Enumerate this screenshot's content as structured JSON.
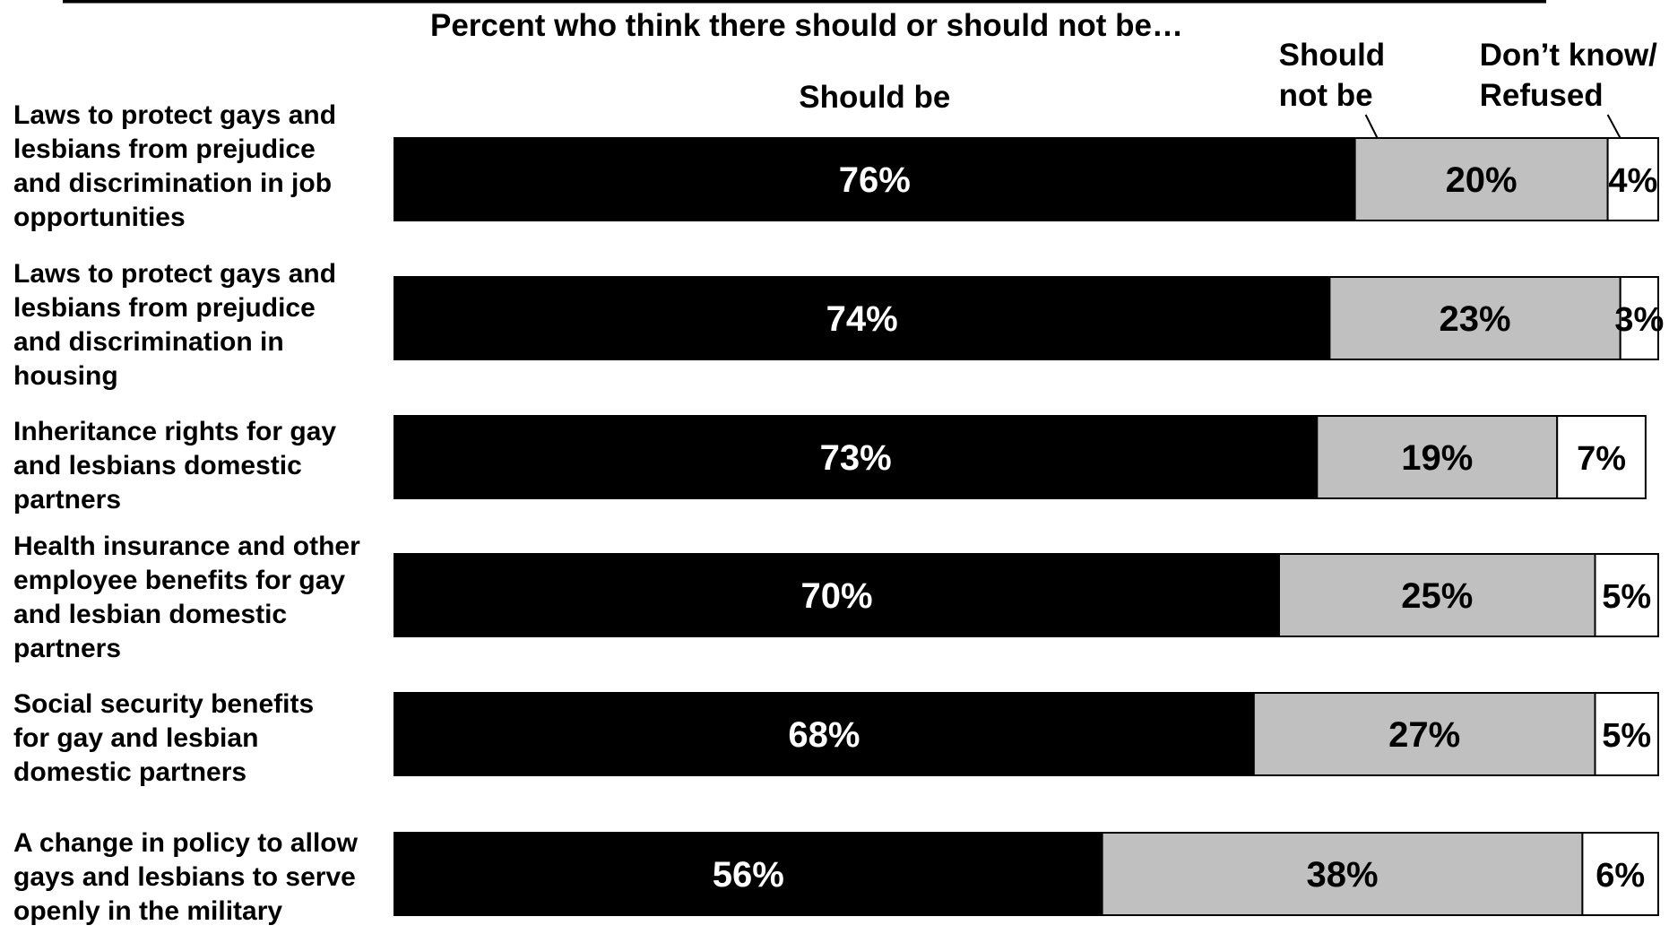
{
  "chart_data": {
    "type": "bar",
    "orientation": "horizontal",
    "stacked": true,
    "title": "Percent who think there should or should not be…",
    "categories": [
      "Laws to protect gays and lesbians from prejudice and discrimination in job opportunities",
      "Laws to protect gays and lesbians from prejudice and discrimination in housing",
      "Inheritance rights for gay and lesbians domestic partners",
      "Health insurance and other employee benefits for gay and lesbian domestic partners",
      "Social security benefits for gay and lesbian domestic partners",
      "A change in policy to allow gays and lesbians to serve openly in the military"
    ],
    "category_lines": [
      [
        "Laws to protect gays and",
        "lesbians from prejudice",
        "and discrimination in job",
        "opportunities"
      ],
      [
        "Laws to protect gays and",
        "lesbians from prejudice",
        "and discrimination in",
        "housing"
      ],
      [
        "Inheritance rights for gay",
        "and lesbians domestic",
        "partners"
      ],
      [
        "Health insurance and other",
        "employee benefits for gay",
        "and lesbian domestic",
        "partners"
      ],
      [
        "Social security benefits",
        "for gay and lesbian",
        "domestic partners"
      ],
      [
        "A change in policy to allow",
        "gays and lesbians to serve",
        "openly in the military"
      ]
    ],
    "series": [
      {
        "name": "Should be",
        "name_lines": [
          "Should be"
        ],
        "color": "#000000",
        "label_color": "#ffffff",
        "values": [
          76,
          74,
          73,
          70,
          68,
          56
        ],
        "labels": [
          "76%",
          "74%",
          "73%",
          "70%",
          "68%",
          "56%"
        ]
      },
      {
        "name": "Should not be",
        "name_lines": [
          "Should",
          "not be"
        ],
        "color": "#c0c0c0",
        "label_color": "#000000",
        "values": [
          20,
          23,
          19,
          25,
          27,
          38
        ],
        "labels": [
          "20%",
          "23%",
          "19%",
          "25%",
          "27%",
          "38%"
        ]
      },
      {
        "name": "Don’t know/ Refused",
        "name_lines": [
          "Don’t know/",
          "Refused"
        ],
        "color": "#ffffff",
        "label_color": "#000000",
        "values": [
          4,
          3,
          7,
          5,
          5,
          6
        ],
        "labels": [
          "4%",
          "3%",
          "7%",
          "5%",
          "5%",
          "6%"
        ]
      }
    ],
    "xlim": [
      0,
      100
    ],
    "grid": false,
    "legend": "top"
  }
}
